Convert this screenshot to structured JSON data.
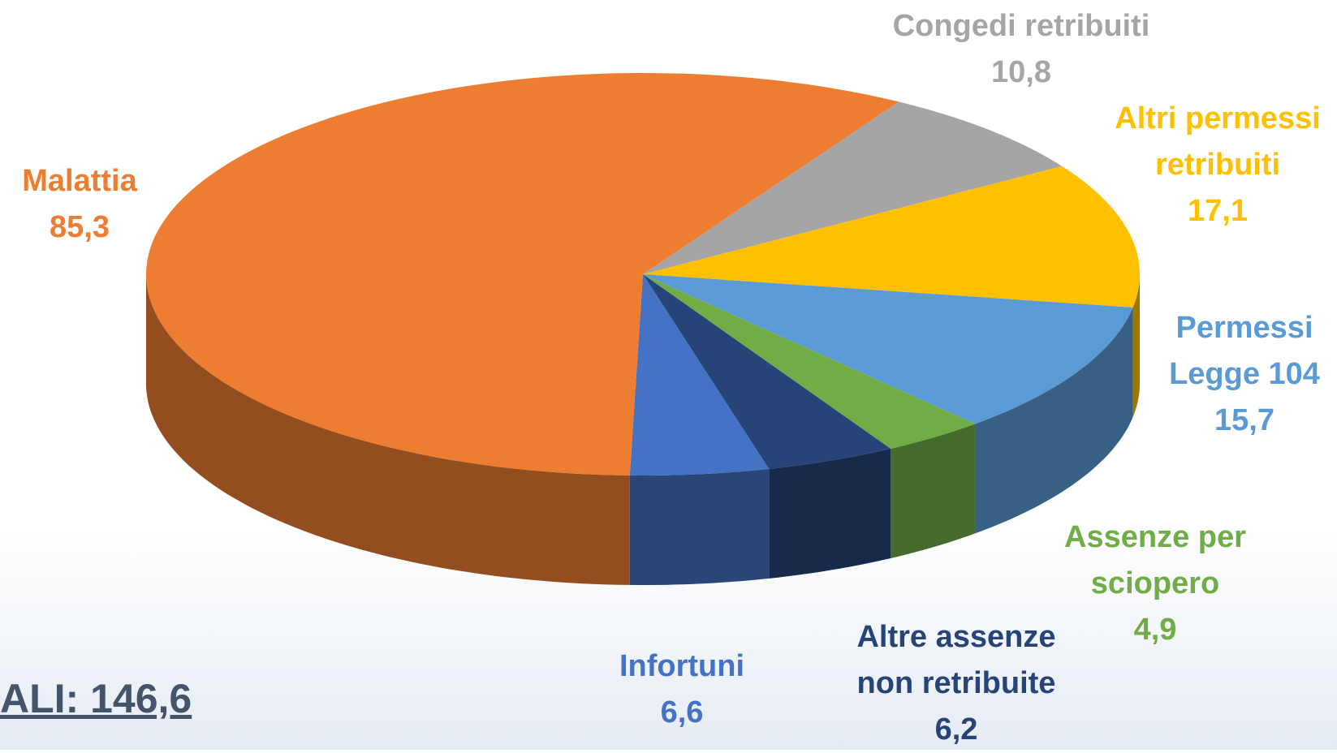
{
  "chart_data": {
    "type": "pie",
    "categories": [
      "Congedi retribuiti",
      "Altri permessi retribuiti",
      "Permessi Legge 104",
      "Assenze per sciopero",
      "Altre assenze non retribuite",
      "Infortuni",
      "Malattia"
    ],
    "values": [
      10.8,
      17.1,
      15.7,
      4.9,
      6.2,
      6.6,
      85.3
    ],
    "value_labels": [
      "10,8",
      "17,1",
      "15,7",
      "4,9",
      "6,2",
      "6,6",
      "85,3"
    ],
    "colors": [
      "#a5a5a5",
      "#ffc000",
      "#5b9bd5",
      "#70ad47",
      "#264478",
      "#4472c4",
      "#ed7d31"
    ],
    "total_label": "ALI: 146,6"
  }
}
